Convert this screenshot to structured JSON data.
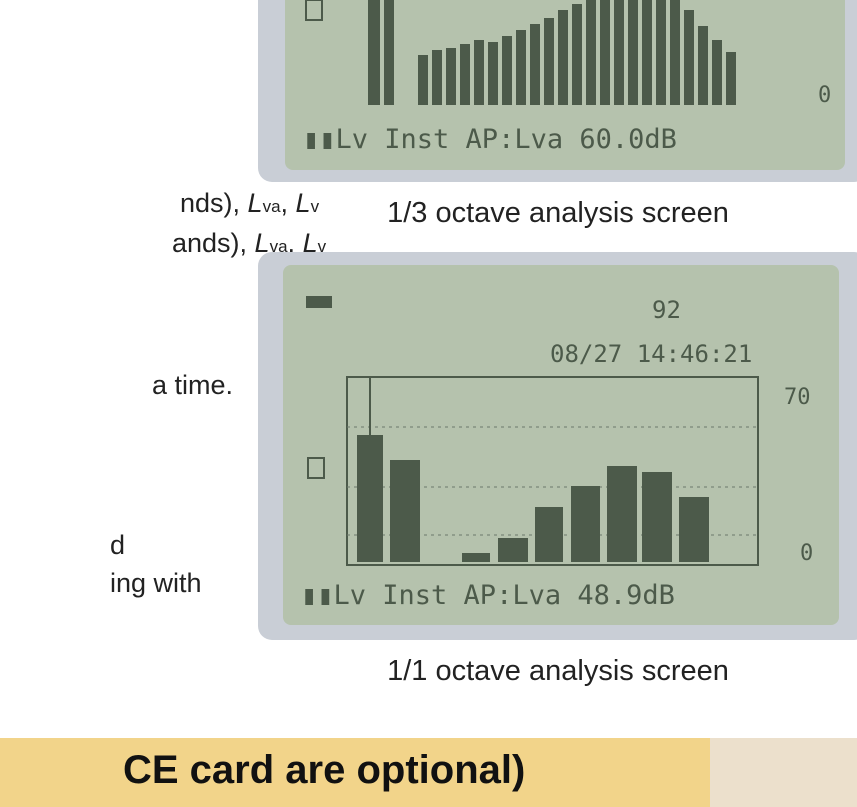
{
  "left_text": {
    "lines": [
      [
        "nds), ",
        "L",
        "va",
        ", ",
        "L",
        "v"
      ],
      [
        "ands), ",
        "L",
        "va",
        ", ",
        "L",
        "v"
      ],
      [
        "a time."
      ],
      [
        "d"
      ],
      [
        "ing with"
      ]
    ]
  },
  "screen_top": {
    "scale_min": "0",
    "status": "▮▮Lv Inst AP:Lva 60.0dB",
    "caption": "1/3 octave analysis screen"
  },
  "screen_bottom": {
    "channel": "92",
    "timestamp": "08/27 14:46:21",
    "scale_max": "70",
    "scale_min": "0",
    "status": "▮▮Lv Inst AP:Lva 48.9dB",
    "caption": "1/1 octave analysis screen"
  },
  "banner": {
    "text": "CE card are optional)"
  }
}
